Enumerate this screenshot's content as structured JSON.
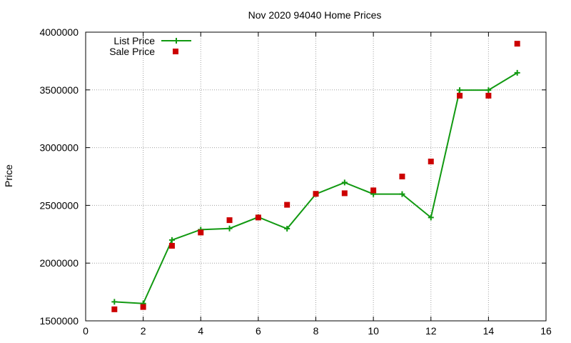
{
  "chart_data": {
    "type": "line",
    "title": "Nov 2020 94040 Home Prices",
    "xlabel": "",
    "ylabel": "Price",
    "xlim": [
      0,
      16
    ],
    "ylim": [
      1500000,
      4000000
    ],
    "xticks": [
      0,
      2,
      4,
      6,
      8,
      10,
      12,
      14,
      16
    ],
    "yticks": [
      1500000,
      2000000,
      2500000,
      3000000,
      3500000,
      4000000
    ],
    "grid": true,
    "legend_position": "top-left",
    "series": [
      {
        "name": "List Price",
        "style": "line-with-plus-markers",
        "color": "#119911",
        "x": [
          1,
          2,
          3,
          4,
          5,
          6,
          7,
          8,
          9,
          10,
          11,
          12,
          13,
          14,
          15
        ],
        "y": [
          1665000,
          1650000,
          2200000,
          2290000,
          2300000,
          2398000,
          2298000,
          2598000,
          2698000,
          2598000,
          2598000,
          2395000,
          3498000,
          3498000,
          3648000
        ]
      },
      {
        "name": "Sale Price",
        "style": "square-markers",
        "color": "#cc0000",
        "x": [
          1,
          2,
          3,
          4,
          5,
          6,
          7,
          8,
          9,
          10,
          11,
          12,
          13,
          14,
          15
        ],
        "y": [
          1600000,
          1620000,
          2150000,
          2265000,
          2372000,
          2395000,
          2505000,
          2600000,
          2605000,
          2630000,
          2750000,
          2880000,
          3450000,
          3450000,
          3900000
        ]
      }
    ]
  }
}
